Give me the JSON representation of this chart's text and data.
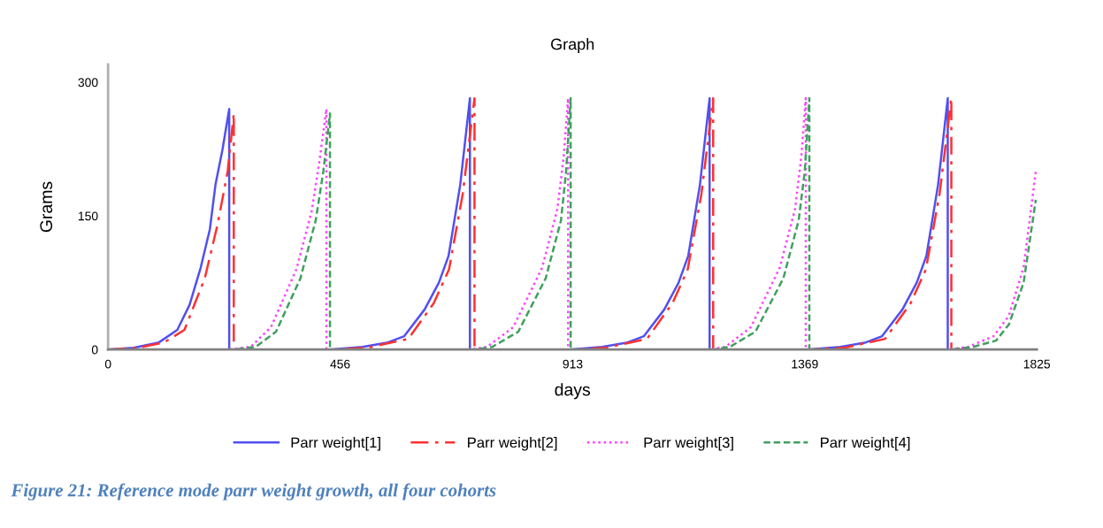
{
  "chart_data": {
    "type": "line",
    "title": "Graph",
    "xlabel": "days",
    "ylabel": "Grams",
    "annotations": [
      "Figure 21: Reference mode parr weight growth, all four cohorts"
    ],
    "xlim": [
      0,
      1825
    ],
    "xticks": [
      0,
      456,
      913,
      1369,
      1825
    ],
    "ylim": [
      0,
      320
    ],
    "yticks": [
      0,
      150,
      300
    ],
    "grid": false,
    "legend": "bottom",
    "marker": "none",
    "series": [
      {
        "name": "Parr weight[1]",
        "color": "#5050f0",
        "line_style": "solid",
        "x": [
          0,
          50,
          100,
          136,
          160,
          182,
          200,
          211,
          225,
          238,
          238,
          436,
          500,
          550,
          582,
          622,
          650,
          669,
          692,
          711,
          711,
          907,
          971,
          1021,
          1053,
          1093,
          1121,
          1140,
          1163,
          1182,
          1182,
          1375,
          1439,
          1489,
          1521,
          1561,
          1589,
          1608,
          1631,
          1650,
          1650,
          1825
        ],
        "values": [
          0,
          2,
          8,
          22,
          50,
          92,
          135,
          185,
          225,
          270,
          0,
          0,
          3,
          8,
          15,
          45,
          75,
          105,
          185,
          282,
          0,
          0,
          3,
          8,
          15,
          45,
          75,
          105,
          185,
          282,
          0,
          0,
          3,
          8,
          15,
          45,
          75,
          105,
          185,
          282,
          0,
          0
        ]
      },
      {
        "name": "Parr weight[2]",
        "color": "#ff3030",
        "line_style": "dashdot",
        "x": [
          0,
          60,
          110,
          150,
          190,
          215,
          235,
          247,
          247,
          445,
          510,
          590,
          640,
          670,
          697,
          720,
          720,
          914,
          979,
          1059,
          1109,
          1139,
          1166,
          1189,
          1189,
          1382,
          1447,
          1527,
          1577,
          1607,
          1634,
          1657,
          1657,
          1825
        ],
        "values": [
          0,
          2,
          8,
          22,
          80,
          140,
          200,
          265,
          0,
          0,
          2,
          12,
          52,
          90,
          175,
          282,
          0,
          0,
          2,
          12,
          52,
          90,
          175,
          282,
          0,
          0,
          2,
          12,
          52,
          90,
          175,
          282,
          0,
          0
        ]
      },
      {
        "name": "Parr weight[3]",
        "color": "#ff40ff",
        "line_style": "dotted",
        "x": [
          0,
          238,
          280,
          320,
          370,
          400,
          415,
          429,
          429,
          711,
          745,
          796,
          853,
          883,
          895,
          904,
          904,
          1182,
          1213,
          1263,
          1320,
          1350,
          1362,
          1371,
          1371,
          1650,
          1690,
          1740,
          1770,
          1799,
          1823
        ],
        "values": [
          0,
          0,
          3,
          25,
          90,
          155,
          210,
          270,
          0,
          0,
          3,
          25,
          92,
          158,
          215,
          282,
          0,
          0,
          3,
          25,
          92,
          158,
          215,
          282,
          0,
          0,
          3,
          15,
          38,
          92,
          200
        ]
      },
      {
        "name": "Parr weight[4]",
        "color": "#40a060",
        "line_style": "dashed",
        "x": [
          0,
          247,
          290,
          330,
          378,
          408,
          423,
          436,
          436,
          720,
          755,
          806,
          860,
          890,
          900,
          909,
          909,
          1189,
          1222,
          1272,
          1327,
          1357,
          1369,
          1378,
          1378,
          1657,
          1700,
          1745,
          1770,
          1799,
          1823
        ],
        "values": [
          0,
          0,
          3,
          20,
          80,
          145,
          200,
          265,
          0,
          0,
          3,
          20,
          80,
          145,
          200,
          282,
          0,
          0,
          3,
          20,
          80,
          145,
          200,
          282,
          0,
          0,
          3,
          10,
          28,
          75,
          168
        ]
      }
    ]
  }
}
